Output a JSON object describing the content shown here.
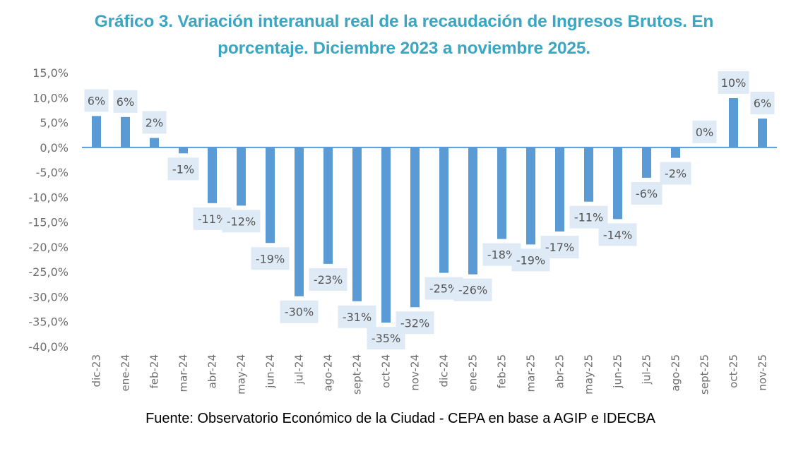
{
  "chart_data": {
    "type": "bar",
    "title": "Gráfico 3. Variación interanual real de la recaudación de Ingresos Brutos. En porcentaje. Diciembre 2023 a noviembre 2025.",
    "title_lines": [
      "Gráfico 3. Variación interanual real de la recaudación de Ingresos Brutos. En",
      "porcentaje. Diciembre 2023 a noviembre 2025."
    ],
    "xlabel": "",
    "ylabel": "",
    "ylim": [
      -40,
      15
    ],
    "yticks": [
      15,
      10,
      5,
      0,
      -5,
      -10,
      -15,
      -20,
      -25,
      -30,
      -35,
      -40
    ],
    "ytick_labels": [
      "15,0%",
      "10,0%",
      "5,0%",
      "0,0%",
      "-5,0%",
      "-10,0%",
      "-15,0%",
      "-20,0%",
      "-25,0%",
      "-30,0%",
      "-35,0%",
      "-40,0%"
    ],
    "grid": false,
    "legend": "none",
    "categories": [
      "dic-23",
      "ene-24",
      "feb-24",
      "mar-24",
      "abr-24",
      "may-24",
      "jun-24",
      "jul-24",
      "ago-24",
      "sept-24",
      "oct-24",
      "nov-24",
      "dic-24",
      "ene-25",
      "feb-25",
      "mar-25",
      "abr-25",
      "may-25",
      "jun-25",
      "jul-25",
      "ago-25",
      "sept-25",
      "oct-25",
      "nov-25"
    ],
    "values": [
      6.3,
      6.1,
      1.9,
      -1.2,
      -11.2,
      -11.7,
      -19.2,
      -29.9,
      -23.4,
      -30.9,
      -35.2,
      -32.1,
      -25.2,
      -25.5,
      -18.4,
      -19.5,
      -16.9,
      -10.9,
      -14.4,
      -6.1,
      -2.1,
      0.0,
      9.9,
      5.8
    ],
    "data_labels": [
      "6%",
      "6%",
      "2%",
      "-1%",
      "-11%",
      "-12%",
      "-19%",
      "-30%",
      "-23%",
      "-31%",
      "-35%",
      "-32%",
      "-25%",
      "-26%",
      "-18%",
      "-19%",
      "-17%",
      "-11%",
      "-14%",
      "-6%",
      "-2%",
      "0%",
      "10%",
      "6%"
    ],
    "bar_color": "#5b9bd5",
    "label_bg_color": "#deeaf6",
    "title_color": "#3aa6c4"
  },
  "source": "Fuente: Observatorio Económico de la Ciudad - CEPA en base a AGIP e IDECBA"
}
